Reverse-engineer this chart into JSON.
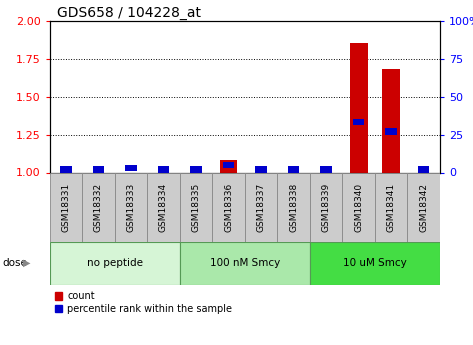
{
  "title": "GDS658 / 104228_at",
  "samples": [
    "GSM18331",
    "GSM18332",
    "GSM18333",
    "GSM18334",
    "GSM18335",
    "GSM18336",
    "GSM18337",
    "GSM18338",
    "GSM18339",
    "GSM18340",
    "GSM18341",
    "GSM18342"
  ],
  "count_values": [
    1.0,
    1.0,
    1.0,
    1.0,
    1.0,
    1.08,
    1.0,
    1.0,
    1.0,
    1.85,
    1.68,
    1.0
  ],
  "percentile_values": [
    2.0,
    2.0,
    3.0,
    2.0,
    2.0,
    5.0,
    2.0,
    2.0,
    2.0,
    33.0,
    27.0,
    2.0
  ],
  "groups": [
    {
      "label": "no peptide",
      "start": 0,
      "end": 4,
      "color": "#d6f5d6"
    },
    {
      "label": "100 nM Smcy",
      "start": 4,
      "end": 8,
      "color": "#aae8aa"
    },
    {
      "label": "10 uM Smcy",
      "start": 8,
      "end": 12,
      "color": "#44dd44"
    }
  ],
  "ylim_left": [
    1.0,
    2.0
  ],
  "ylim_right": [
    0,
    100
  ],
  "yticks_left": [
    1.0,
    1.25,
    1.5,
    1.75,
    2.0
  ],
  "yticks_right": [
    0,
    25,
    50,
    75,
    100
  ],
  "bar_color": "#cc0000",
  "percentile_color": "#0000cc",
  "background_color": "#ffffff",
  "bar_width": 0.55,
  "title_fontsize": 10,
  "tick_fontsize": 8,
  "label_fontsize": 6.5,
  "group_fontsize": 7.5
}
